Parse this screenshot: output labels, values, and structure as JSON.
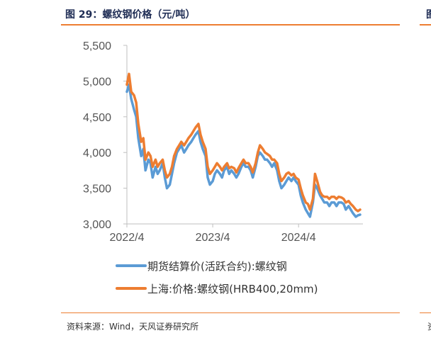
{
  "title": "图 29：螺纹钢价格（元/吨）",
  "title_right_fragment": "图",
  "source": "资料来源：Wind，天风证券研究所",
  "source_right_fragment": "资",
  "chart_data": {
    "type": "line",
    "title": "螺纹钢价格（元/吨）",
    "xlabel": "",
    "ylabel": "",
    "ylim": [
      3000,
      5500
    ],
    "yticks": [
      3000,
      3500,
      4000,
      4500,
      5000,
      5500
    ],
    "ytick_labels": [
      "3,000",
      "3,500",
      "4,000",
      "4,500",
      "5,000",
      "5,500"
    ],
    "xlim": [
      0,
      33
    ],
    "xtick_positions": [
      0,
      12,
      24
    ],
    "xtick_labels": [
      "2022/4",
      "2023/4",
      "2024/4"
    ],
    "x_unit": "months since 2022/4",
    "legend_position": "bottom",
    "colors": {
      "futures": "#5b9bd5",
      "spot": "#ed7d31"
    },
    "series": [
      {
        "name": "期货结算价(活跃合约):螺纹钢",
        "points": [
          [
            0,
            4850
          ],
          [
            0.3,
            4950
          ],
          [
            0.6,
            4750
          ],
          [
            1,
            4600
          ],
          [
            1.3,
            4500
          ],
          [
            1.6,
            4200
          ],
          [
            2,
            3950
          ],
          [
            2.3,
            4050
          ],
          [
            2.6,
            3750
          ],
          [
            3,
            3900
          ],
          [
            3.3,
            3850
          ],
          [
            3.6,
            3650
          ],
          [
            4,
            3800
          ],
          [
            4.3,
            3700
          ],
          [
            4.6,
            3750
          ],
          [
            5,
            3850
          ],
          [
            5.3,
            3650
          ],
          [
            5.6,
            3500
          ],
          [
            6,
            3550
          ],
          [
            6.3,
            3700
          ],
          [
            6.6,
            3850
          ],
          [
            7,
            4000
          ],
          [
            7.3,
            4050
          ],
          [
            7.6,
            4100
          ],
          [
            8,
            4000
          ],
          [
            8.3,
            4050
          ],
          [
            8.6,
            4100
          ],
          [
            9,
            4150
          ],
          [
            9.3,
            4200
          ],
          [
            9.6,
            4250
          ],
          [
            10,
            4300
          ],
          [
            10.3,
            4150
          ],
          [
            10.6,
            4050
          ],
          [
            11,
            3950
          ],
          [
            11.3,
            3650
          ],
          [
            11.6,
            3550
          ],
          [
            12,
            3600
          ],
          [
            12.3,
            3700
          ],
          [
            12.6,
            3750
          ],
          [
            13,
            3700
          ],
          [
            13.3,
            3650
          ],
          [
            13.6,
            3750
          ],
          [
            14,
            3800
          ],
          [
            14.3,
            3700
          ],
          [
            14.6,
            3750
          ],
          [
            15,
            3700
          ],
          [
            15.3,
            3650
          ],
          [
            15.6,
            3700
          ],
          [
            16,
            3800
          ],
          [
            16.3,
            3850
          ],
          [
            16.6,
            3800
          ],
          [
            17,
            3800
          ],
          [
            17.3,
            3750
          ],
          [
            17.6,
            3650
          ],
          [
            18,
            3800
          ],
          [
            18.3,
            3950
          ],
          [
            18.6,
            4000
          ],
          [
            19,
            3950
          ],
          [
            19.3,
            3900
          ],
          [
            19.6,
            3900
          ],
          [
            20,
            3850
          ],
          [
            20.3,
            3800
          ],
          [
            20.6,
            3850
          ],
          [
            21,
            3750
          ],
          [
            21.3,
            3600
          ],
          [
            21.6,
            3500
          ],
          [
            22,
            3550
          ],
          [
            22.3,
            3600
          ],
          [
            22.6,
            3650
          ],
          [
            23,
            3600
          ],
          [
            23.3,
            3650
          ],
          [
            23.6,
            3600
          ],
          [
            24,
            3550
          ],
          [
            24.3,
            3400
          ],
          [
            24.6,
            3300
          ],
          [
            25,
            3200
          ],
          [
            25.3,
            3150
          ],
          [
            25.6,
            3100
          ],
          [
            26,
            3300
          ],
          [
            26.3,
            3550
          ],
          [
            26.6,
            3500
          ],
          [
            27,
            3400
          ],
          [
            27.3,
            3350
          ],
          [
            27.6,
            3300
          ],
          [
            28,
            3300
          ],
          [
            28.3,
            3250
          ],
          [
            28.6,
            3300
          ],
          [
            29,
            3300
          ],
          [
            29.3,
            3250
          ],
          [
            29.6,
            3300
          ],
          [
            30,
            3300
          ],
          [
            30.3,
            3280
          ],
          [
            30.6,
            3200
          ],
          [
            31,
            3250
          ],
          [
            31.3,
            3200
          ],
          [
            31.6,
            3150
          ],
          [
            32,
            3100
          ],
          [
            32.3,
            3120
          ],
          [
            32.6,
            3130
          ]
        ]
      },
      {
        "name": "上海:价格:螺纹钢(HRB400,20mm)",
        "points": [
          [
            0,
            4950
          ],
          [
            0.3,
            5100
          ],
          [
            0.6,
            4850
          ],
          [
            1,
            4800
          ],
          [
            1.3,
            4700
          ],
          [
            1.6,
            4400
          ],
          [
            2,
            4150
          ],
          [
            2.3,
            4200
          ],
          [
            2.6,
            3900
          ],
          [
            3,
            4000
          ],
          [
            3.3,
            3950
          ],
          [
            3.6,
            3800
          ],
          [
            4,
            3900
          ],
          [
            4.3,
            3800
          ],
          [
            4.6,
            3850
          ],
          [
            5,
            3900
          ],
          [
            5.3,
            3750
          ],
          [
            5.6,
            3650
          ],
          [
            6,
            3700
          ],
          [
            6.3,
            3800
          ],
          [
            6.6,
            3950
          ],
          [
            7,
            4050
          ],
          [
            7.3,
            4100
          ],
          [
            7.6,
            4150
          ],
          [
            8,
            4100
          ],
          [
            8.3,
            4150
          ],
          [
            8.6,
            4200
          ],
          [
            9,
            4250
          ],
          [
            9.3,
            4300
          ],
          [
            9.6,
            4350
          ],
          [
            10,
            4400
          ],
          [
            10.3,
            4250
          ],
          [
            10.6,
            4150
          ],
          [
            11,
            4050
          ],
          [
            11.3,
            3800
          ],
          [
            11.6,
            3700
          ],
          [
            12,
            3750
          ],
          [
            12.3,
            3800
          ],
          [
            12.6,
            3850
          ],
          [
            13,
            3800
          ],
          [
            13.3,
            3750
          ],
          [
            13.6,
            3800
          ],
          [
            14,
            3850
          ],
          [
            14.3,
            3780
          ],
          [
            14.6,
            3800
          ],
          [
            15,
            3780
          ],
          [
            15.3,
            3720
          ],
          [
            15.6,
            3780
          ],
          [
            16,
            3850
          ],
          [
            16.3,
            3900
          ],
          [
            16.6,
            3850
          ],
          [
            17,
            3850
          ],
          [
            17.3,
            3800
          ],
          [
            17.6,
            3720
          ],
          [
            18,
            3850
          ],
          [
            18.3,
            4000
          ],
          [
            18.6,
            4100
          ],
          [
            19,
            4050
          ],
          [
            19.3,
            4000
          ],
          [
            19.6,
            3980
          ],
          [
            20,
            3950
          ],
          [
            20.3,
            3900
          ],
          [
            20.6,
            3900
          ],
          [
            21,
            3850
          ],
          [
            21.3,
            3700
          ],
          [
            21.6,
            3600
          ],
          [
            22,
            3650
          ],
          [
            22.3,
            3700
          ],
          [
            22.6,
            3720
          ],
          [
            23,
            3680
          ],
          [
            23.3,
            3700
          ],
          [
            23.6,
            3650
          ],
          [
            24,
            3620
          ],
          [
            24.3,
            3500
          ],
          [
            24.6,
            3400
          ],
          [
            25,
            3300
          ],
          [
            25.3,
            3280
          ],
          [
            25.6,
            3200
          ],
          [
            26,
            3350
          ],
          [
            26.3,
            3700
          ],
          [
            26.6,
            3600
          ],
          [
            27,
            3450
          ],
          [
            27.3,
            3400
          ],
          [
            27.6,
            3380
          ],
          [
            28,
            3380
          ],
          [
            28.3,
            3350
          ],
          [
            28.6,
            3380
          ],
          [
            29,
            3380
          ],
          [
            29.3,
            3350
          ],
          [
            29.6,
            3380
          ],
          [
            30,
            3370
          ],
          [
            30.3,
            3350
          ],
          [
            30.6,
            3300
          ],
          [
            31,
            3320
          ],
          [
            31.3,
            3280
          ],
          [
            31.6,
            3250
          ],
          [
            32,
            3200
          ],
          [
            32.3,
            3180
          ],
          [
            32.6,
            3200
          ]
        ]
      }
    ]
  }
}
